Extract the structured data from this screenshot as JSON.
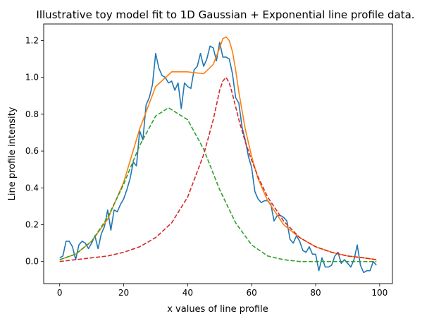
{
  "chart_data": {
    "type": "line",
    "title": "Illustrative toy model fit to 1D Gaussian + Exponential line profile data.",
    "xlabel": "x values of line profile",
    "ylabel": "Line profile intensity",
    "xlim": [
      -5,
      104
    ],
    "ylim": [
      -0.12,
      1.29
    ],
    "xticks": [
      0,
      20,
      40,
      60,
      80,
      100
    ],
    "xtick_labels": [
      "0",
      "20",
      "40",
      "60",
      "80",
      "100"
    ],
    "yticks": [
      0.0,
      0.2,
      0.4,
      0.6,
      0.8,
      1.0,
      1.2
    ],
    "ytick_labels": [
      "0.0",
      "0.2",
      "0.4",
      "0.6",
      "0.8",
      "1.0",
      "1.2"
    ],
    "grid": false,
    "legend": false,
    "series": [
      {
        "color": "#1f77b4",
        "style": "solid",
        "x": [
          0,
          1,
          2,
          3,
          4,
          5,
          6,
          7,
          8,
          9,
          10,
          11,
          12,
          13,
          14,
          15,
          16,
          17,
          18,
          19,
          20,
          21,
          22,
          23,
          24,
          25,
          26,
          27,
          28,
          29,
          30,
          31,
          32,
          33,
          34,
          35,
          36,
          37,
          38,
          39,
          40,
          41,
          42,
          43,
          44,
          45,
          46,
          47,
          48,
          49,
          50,
          51,
          52,
          53,
          54,
          55,
          56,
          57,
          58,
          59,
          60,
          61,
          62,
          63,
          64,
          65,
          66,
          67,
          68,
          69,
          70,
          71,
          72,
          73,
          74,
          75,
          76,
          77,
          78,
          79,
          80,
          81,
          82,
          83,
          84,
          85,
          86,
          87,
          88,
          89,
          90,
          91,
          92,
          93,
          94,
          95,
          96,
          97,
          98,
          99
        ],
        "y": [
          0.02,
          0.03,
          0.11,
          0.11,
          0.08,
          0.01,
          0.09,
          0.11,
          0.1,
          0.07,
          0.1,
          0.14,
          0.07,
          0.15,
          0.19,
          0.28,
          0.17,
          0.28,
          0.27,
          0.31,
          0.34,
          0.39,
          0.45,
          0.54,
          0.52,
          0.71,
          0.66,
          0.85,
          0.89,
          0.96,
          1.13,
          1.05,
          1.01,
          1.0,
          0.97,
          0.98,
          0.93,
          0.97,
          0.83,
          0.97,
          0.95,
          0.94,
          1.04,
          1.06,
          1.13,
          1.06,
          1.1,
          1.17,
          1.16,
          1.09,
          1.19,
          1.11,
          1.11,
          1.1,
          1.02,
          0.89,
          0.86,
          0.73,
          0.66,
          0.57,
          0.51,
          0.38,
          0.34,
          0.32,
          0.33,
          0.33,
          0.31,
          0.22,
          0.25,
          0.25,
          0.24,
          0.22,
          0.12,
          0.1,
          0.14,
          0.11,
          0.06,
          0.05,
          0.08,
          0.04,
          0.04,
          -0.05,
          0.02,
          -0.03,
          -0.03,
          -0.02,
          0.03,
          0.05,
          -0.01,
          0.01,
          -0.01,
          -0.03,
          0.01,
          0.09,
          -0.02,
          -0.06,
          -0.05,
          -0.05,
          0.0,
          -0.02
        ]
      },
      {
        "color": "#ff7f0e",
        "style": "solid",
        "x": [
          0,
          5,
          10,
          15,
          20,
          25,
          30,
          35,
          40,
          45,
          48,
          50,
          51,
          52,
          53,
          54,
          55,
          56,
          58,
          60,
          62,
          65,
          70,
          75,
          80,
          85,
          90,
          95,
          99
        ],
        "y": [
          0.01,
          0.04,
          0.11,
          0.23,
          0.43,
          0.72,
          0.95,
          1.03,
          1.03,
          1.02,
          1.07,
          1.16,
          1.21,
          1.22,
          1.2,
          1.14,
          1.04,
          0.92,
          0.72,
          0.57,
          0.45,
          0.33,
          0.2,
          0.13,
          0.08,
          0.05,
          0.03,
          0.02,
          0.01
        ]
      },
      {
        "color": "#2ca02c",
        "style": "dashed",
        "x": [
          0,
          5,
          10,
          15,
          20,
          25,
          30,
          34,
          40,
          45,
          50,
          55,
          60,
          65,
          70,
          75,
          80,
          85,
          90,
          95,
          99
        ],
        "y": [
          0.01,
          0.04,
          0.11,
          0.24,
          0.42,
          0.63,
          0.79,
          0.835,
          0.77,
          0.61,
          0.39,
          0.21,
          0.09,
          0.03,
          0.01,
          0.0,
          0.0,
          0.0,
          0.0,
          0.0,
          0.0
        ]
      },
      {
        "color": "#d62728",
        "style": "dashed",
        "x": [
          0,
          5,
          10,
          15,
          20,
          25,
          30,
          35,
          40,
          45,
          48,
          50,
          51,
          52,
          53,
          54,
          55,
          56,
          58,
          60,
          62,
          65,
          70,
          75,
          80,
          85,
          90,
          95,
          99
        ],
        "y": [
          0.0,
          0.01,
          0.02,
          0.03,
          0.05,
          0.08,
          0.13,
          0.21,
          0.35,
          0.58,
          0.77,
          0.93,
          0.98,
          1.0,
          0.97,
          0.91,
          0.84,
          0.77,
          0.65,
          0.55,
          0.46,
          0.35,
          0.22,
          0.13,
          0.08,
          0.05,
          0.03,
          0.02,
          0.01
        ]
      }
    ]
  }
}
